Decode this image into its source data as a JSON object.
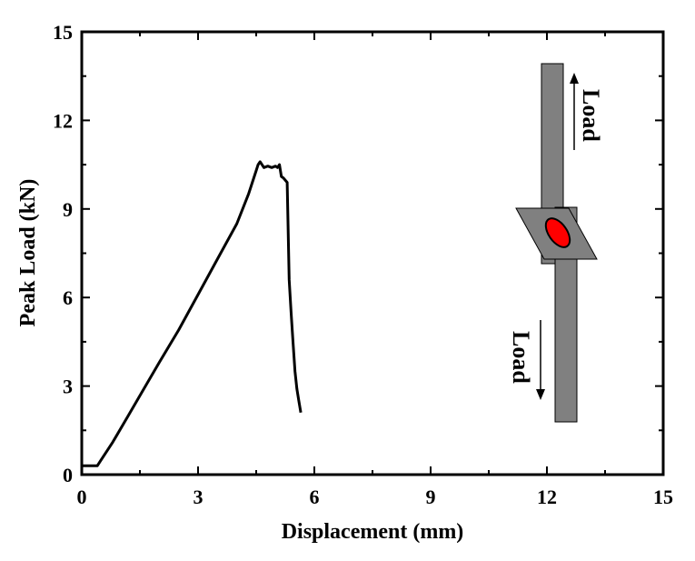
{
  "chart_data": {
    "type": "line",
    "xlabel": "Displacement (mm)",
    "ylabel": "Peak Load (kN)",
    "xlim": [
      0,
      15
    ],
    "ylim": [
      0,
      15
    ],
    "xticks": [
      0,
      3,
      6,
      9,
      12,
      15
    ],
    "yticks": [
      0,
      3,
      6,
      9,
      12,
      15
    ],
    "grid": false,
    "series": [
      {
        "x": [
          0.0,
          0.4,
          0.5,
          0.8,
          1.2,
          1.6,
          2.0,
          2.5,
          3.0,
          3.5,
          4.0,
          4.3,
          4.5,
          4.55,
          4.6,
          4.65,
          4.7,
          4.8,
          4.9,
          5.0,
          5.05,
          5.1,
          5.15,
          5.2,
          5.3,
          5.35,
          5.4,
          5.45,
          5.5,
          5.55,
          5.6,
          5.65
        ],
        "y": [
          0.3,
          0.3,
          0.5,
          1.1,
          2.0,
          2.9,
          3.8,
          4.9,
          6.1,
          7.3,
          8.5,
          9.5,
          10.3,
          10.5,
          10.6,
          10.5,
          10.4,
          10.45,
          10.4,
          10.45,
          10.4,
          10.5,
          10.1,
          10.05,
          9.9,
          6.6,
          5.5,
          4.5,
          3.5,
          2.9,
          2.5,
          2.1
        ]
      }
    ]
  },
  "inset": {
    "top_label": "Load",
    "bottom_label": "Load",
    "plate_color": "#808080",
    "weld_color": "#ff0000"
  },
  "colors": {
    "line": "#000000",
    "axes": "#000000"
  }
}
